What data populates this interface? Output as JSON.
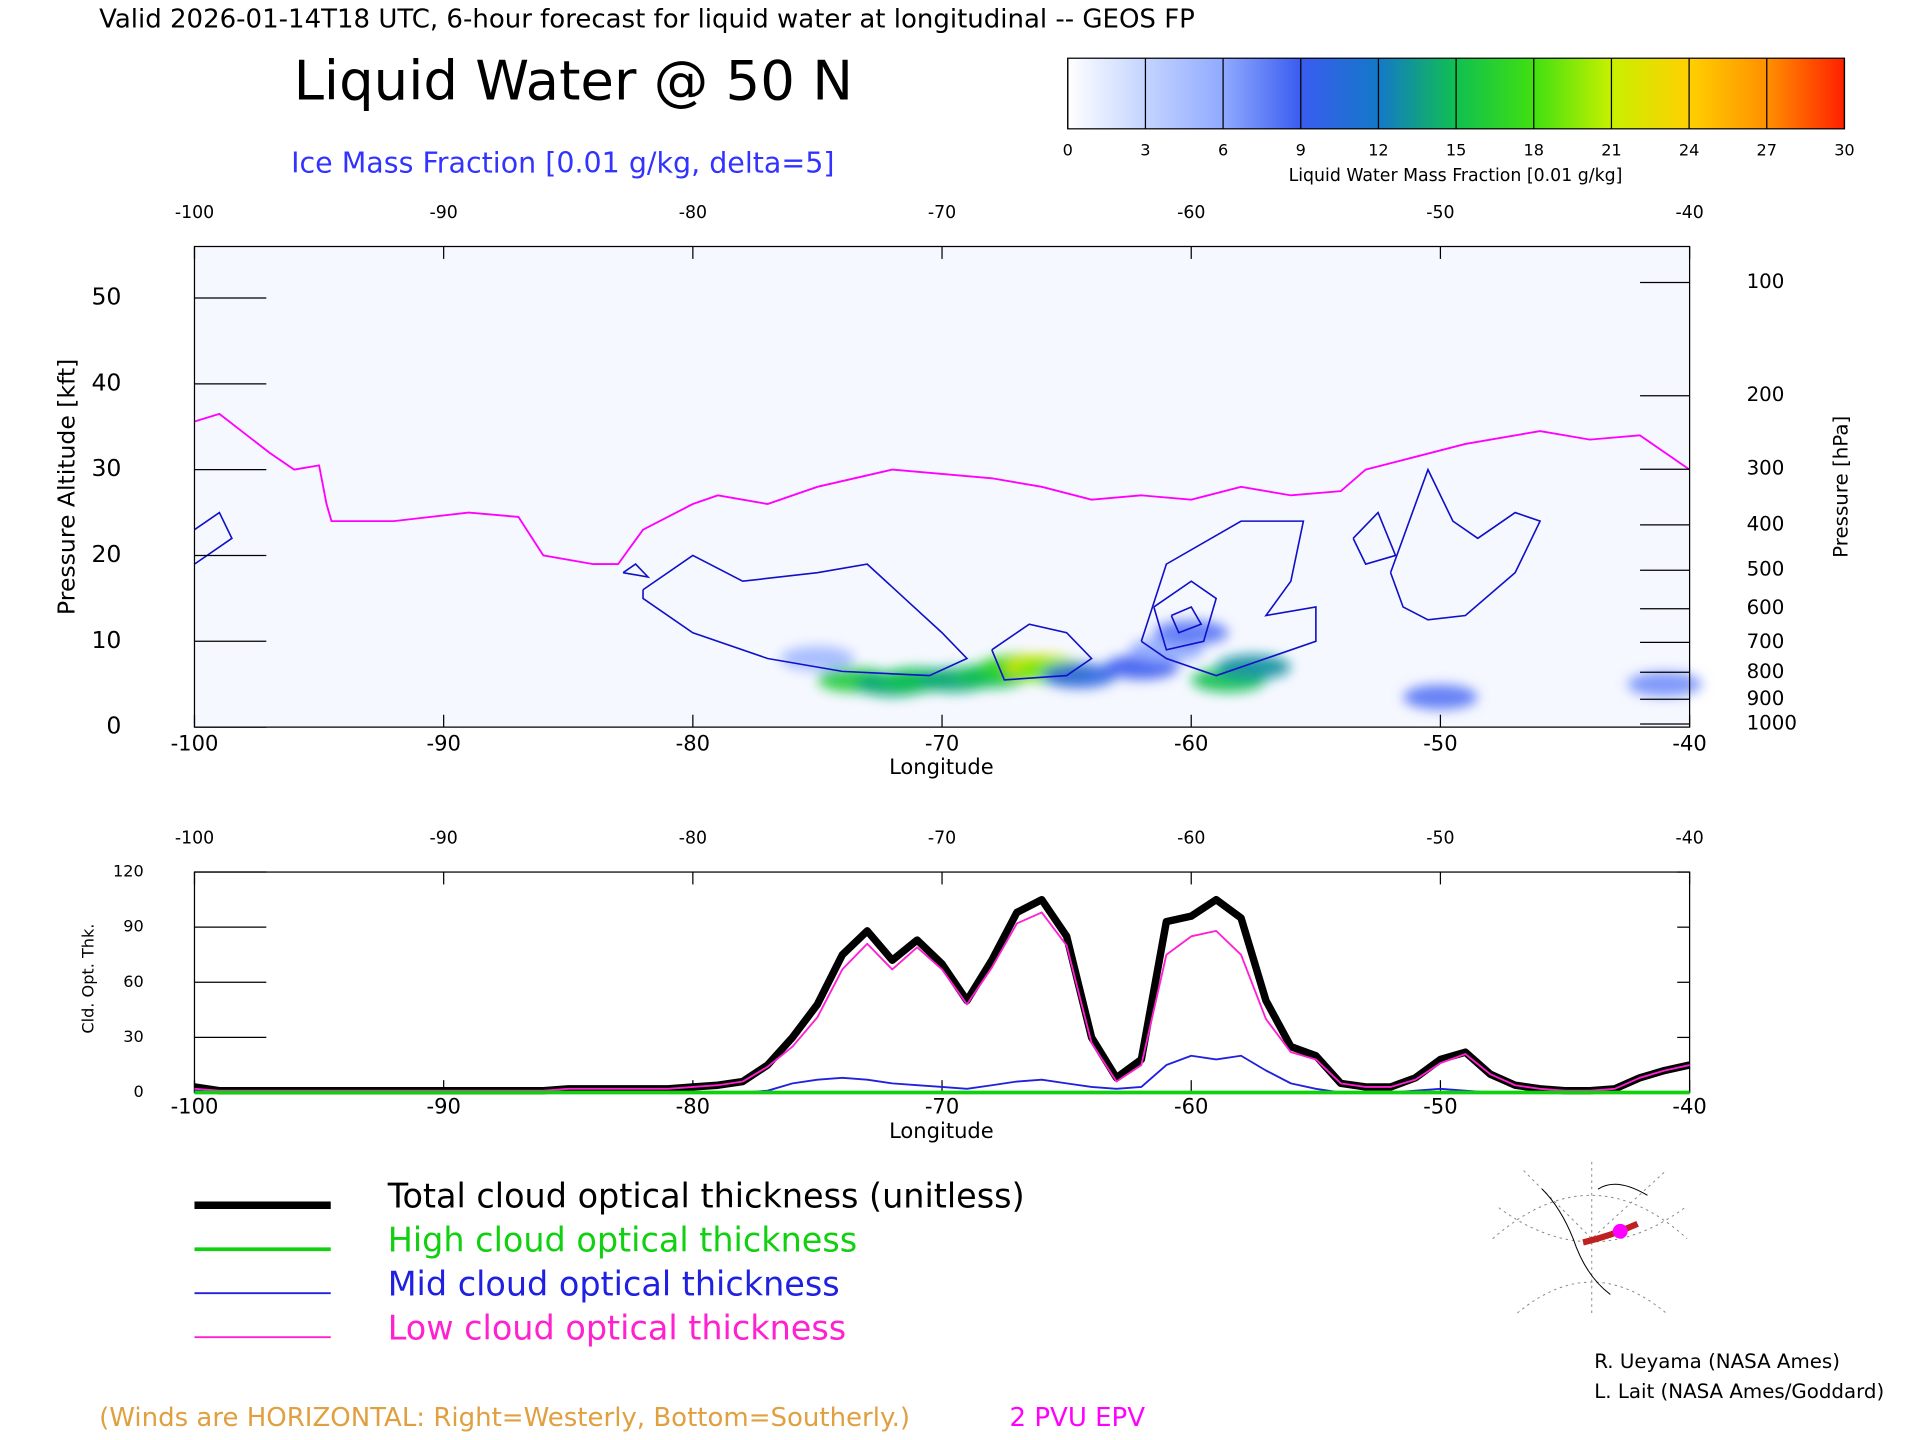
{
  "header": {
    "valid": "Valid 2026-01-14T18 UTC, 6-hour forecast for liquid water at longitudinal -- GEOS FP"
  },
  "credits": [
    "R. Ueyama (NASA Ames)",
    "L. Lait (NASA Ames/Goddard)"
  ],
  "winds_note": "(Winds are HORIZONTAL: Right=Westerly, Bottom=Southerly.)",
  "chart_data": [
    {
      "type": "cross-section",
      "title": "Liquid Water @ 50 N",
      "subtitle": "Ice Mass Fraction [0.01 g/kg, delta=5]",
      "xlabel": "Longitude",
      "ylabel": "Pressure Altitude [kft]",
      "y2label": "Pressure [hPa]",
      "xlim": [
        -100,
        -40
      ],
      "xticks": [
        -100,
        -90,
        -80,
        -70,
        -60,
        -50,
        -40
      ],
      "ylim": [
        0,
        56
      ],
      "yticks": [
        0,
        10,
        20,
        30,
        40,
        50
      ],
      "y2ticks": [
        100,
        200,
        300,
        400,
        500,
        600,
        700,
        800,
        900,
        1000
      ],
      "colorbar": {
        "label": "Liquid Water Mass Fraction [0.01 g/kg]",
        "lim": [
          0,
          30
        ],
        "ticks": [
          0,
          3,
          6,
          9,
          12,
          15,
          18,
          21,
          24,
          27,
          30
        ],
        "colors": [
          "#ffffff",
          "#c4d4ff",
          "#90aaff",
          "#3a5cf0",
          "#1478c8",
          "#10c050",
          "#40e010",
          "#c8f000",
          "#ffd000",
          "#ff9000",
          "#ff2000"
        ]
      },
      "liquid_water": {
        "lon": [
          -75,
          -73.5,
          -72,
          -71,
          -69.5,
          -68,
          -67,
          -66,
          -65.5,
          -64.5,
          -62,
          -61,
          -60,
          -58.5,
          -57.5,
          -50,
          -41
        ],
        "alt": [
          8,
          5.5,
          5,
          5.5,
          5.5,
          6,
          7,
          7,
          6.5,
          6,
          7,
          9,
          11,
          5.5,
          7,
          3.5,
          5
        ],
        "values": [
          5,
          16,
          14,
          15,
          14,
          15,
          17,
          22,
          19,
          10,
          9,
          6,
          8,
          15,
          13,
          8,
          7
        ]
      },
      "ice_color": "#1010c8",
      "ice_contours": [
        {
          "lon": [
            -82,
            -80,
            -78,
            -75,
            -73,
            -71.5,
            -70,
            -69,
            -70.5,
            -74,
            -77,
            -80,
            -82,
            -82
          ],
          "alt": [
            16,
            20,
            17,
            18,
            19,
            15,
            11,
            8,
            6,
            6.5,
            8,
            11,
            15,
            16
          ]
        },
        {
          "lon": [
            -68,
            -66.5,
            -65,
            -64,
            -65,
            -67.5,
            -68
          ],
          "alt": [
            9,
            12,
            11,
            8,
            6,
            5.5,
            9
          ]
        },
        {
          "lon": [
            -62,
            -61,
            -58,
            -55.5,
            -56,
            -57,
            -55,
            -55,
            -57,
            -59,
            -61,
            -62
          ],
          "alt": [
            10,
            19,
            24,
            24,
            17,
            13,
            14,
            10,
            8,
            6,
            8,
            10
          ]
        },
        {
          "lon": [
            -61.5,
            -60,
            -59,
            -59.5,
            -61,
            -61.5
          ],
          "alt": [
            14,
            17,
            15,
            10,
            9,
            14
          ]
        },
        {
          "lon": [
            -60.8,
            -60,
            -59.6,
            -60.5,
            -60.8
          ],
          "alt": [
            13,
            14,
            12,
            11,
            13
          ]
        },
        {
          "lon": [
            -52,
            -50.5,
            -49.5,
            -48.5,
            -47,
            -46,
            -47,
            -49,
            -50.5,
            -51.5,
            -52
          ],
          "alt": [
            18,
            30,
            24,
            22,
            25,
            24,
            18,
            13,
            12.5,
            14,
            18
          ]
        },
        {
          "lon": [
            -53.5,
            -52.5,
            -51.8,
            -53,
            -53.5
          ],
          "alt": [
            22,
            25,
            20,
            19,
            22
          ]
        },
        {
          "lon": [
            -100,
            -99,
            -98.5,
            -100
          ],
          "alt": [
            23,
            25,
            22,
            19
          ]
        },
        {
          "lon": [
            -82.8,
            -82.3,
            -81.8,
            -82.8
          ],
          "alt": [
            18,
            19,
            17.5,
            18
          ]
        }
      ],
      "series": [
        {
          "name": "2 PVU EPV",
          "color": "#ff00ff",
          "x": [
            -100,
            -99,
            -97,
            -96,
            -95,
            -94.7,
            -94.5,
            -92,
            -89,
            -87,
            -86,
            -84,
            -83,
            -82,
            -80,
            -79,
            -77,
            -75,
            -72,
            -70,
            -68,
            -66,
            -64,
            -62,
            -60,
            -58,
            -56,
            -54,
            -53,
            -51,
            -49,
            -46,
            -44,
            -42,
            -40
          ],
          "values": [
            35.6,
            36.5,
            32,
            30,
            30.5,
            26,
            24,
            24,
            25,
            24.5,
            20,
            19,
            19,
            23,
            26,
            27,
            26,
            28,
            30,
            29.5,
            29,
            28,
            26.5,
            27,
            26.5,
            28,
            27,
            27.5,
            30,
            31.5,
            33,
            34.5,
            33.5,
            34,
            30
          ]
        }
      ]
    },
    {
      "type": "line",
      "xlabel": "Longitude",
      "ylabel": "Cld. Opt. Thk.",
      "xlim": [
        -100,
        -40
      ],
      "xticks": [
        -100,
        -90,
        -80,
        -70,
        -60,
        -50,
        -40
      ],
      "ylim": [
        0,
        120
      ],
      "yticks": [
        0,
        30,
        60,
        90,
        120
      ],
      "x": [
        -100,
        -99,
        -98,
        -97,
        -96,
        -95,
        -94,
        -93,
        -92,
        -91,
        -90,
        -89,
        -88,
        -87,
        -86,
        -85,
        -84,
        -83,
        -82,
        -81,
        -80,
        -79,
        -78,
        -77,
        -76,
        -75,
        -74,
        -73,
        -72,
        -71,
        -70,
        -69,
        -68,
        -67,
        -66,
        -65,
        -64,
        -63,
        -62,
        -61,
        -60,
        -59,
        -58,
        -57,
        -56,
        -55,
        -54,
        -53,
        -52,
        -51,
        -50,
        -49,
        -48,
        -47,
        -46,
        -45,
        -44,
        -43,
        -42,
        -41,
        -40
      ],
      "series": [
        {
          "name": "Total cloud optical thickness (unitless)",
          "color": "#000000",
          "width": 6,
          "values": [
            3,
            1,
            1,
            1,
            1,
            1,
            1,
            1,
            1,
            1,
            1,
            1,
            1,
            1,
            1,
            2,
            2,
            2,
            2,
            2,
            3,
            4,
            6,
            15,
            30,
            48,
            75,
            88,
            72,
            83,
            70,
            50,
            72,
            98,
            105,
            85,
            30,
            8,
            18,
            93,
            96,
            105,
            95,
            50,
            25,
            20,
            5,
            3,
            3,
            8,
            18,
            22,
            10,
            4,
            2,
            1,
            1,
            2,
            8,
            12,
            15
          ]
        },
        {
          "name": "High cloud optical thickness",
          "color": "#10d010",
          "width": 3,
          "values": [
            0,
            0,
            0,
            0,
            0,
            0,
            0,
            0,
            0,
            0,
            0,
            0,
            0,
            0,
            0,
            0,
            0,
            0,
            0,
            0,
            0,
            0,
            0,
            0,
            0,
            0,
            0,
            0,
            0,
            0,
            0,
            0,
            0,
            0,
            0,
            0,
            0,
            0,
            0,
            0,
            0,
            0,
            0,
            0,
            0,
            0,
            0,
            0,
            0,
            0,
            0,
            0,
            0,
            0,
            0,
            0,
            0,
            0,
            0,
            0,
            0
          ]
        },
        {
          "name": "Mid cloud optical thickness",
          "color": "#2020e0",
          "width": 1.5,
          "values": [
            1,
            0,
            0,
            0,
            0,
            0,
            0,
            0,
            0,
            0,
            0,
            0,
            0,
            0,
            0,
            0,
            0,
            0,
            0,
            0,
            0,
            0,
            0,
            1,
            5,
            7,
            8,
            7,
            5,
            4,
            3,
            2,
            4,
            6,
            7,
            5,
            3,
            2,
            3,
            15,
            20,
            18,
            20,
            12,
            5,
            2,
            0,
            0,
            0,
            1,
            2,
            1,
            0,
            0,
            0,
            0,
            0,
            0,
            0,
            0,
            0
          ]
        },
        {
          "name": "Low cloud optical thickness",
          "color": "#ff20d0",
          "width": 1.5,
          "values": [
            2,
            1,
            1,
            1,
            1,
            1,
            1,
            1,
            1,
            1,
            1,
            1,
            1,
            1,
            1,
            2,
            2,
            2,
            2,
            2,
            3,
            4,
            6,
            14,
            25,
            41,
            67,
            81,
            67,
            79,
            67,
            48,
            68,
            92,
            98,
            80,
            27,
            6,
            15,
            75,
            85,
            88,
            75,
            40,
            22,
            18,
            5,
            3,
            3,
            7,
            16,
            21,
            10,
            4,
            2,
            1,
            1,
            2,
            8,
            12,
            15
          ]
        }
      ]
    }
  ]
}
